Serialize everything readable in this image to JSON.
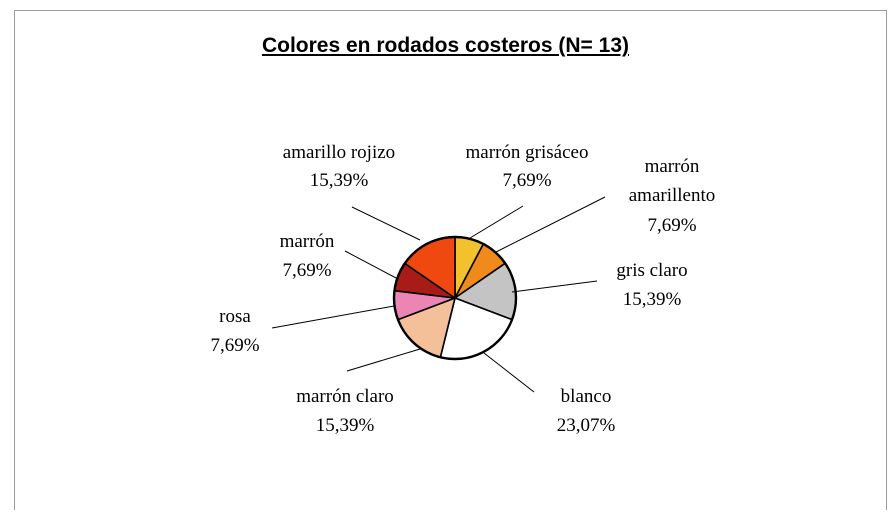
{
  "chart_data": {
    "type": "pie",
    "title": "Colores en rodados costeros (N= 13)",
    "slices": [
      {
        "label": "marrón grisáceo",
        "value": 7.69,
        "value_text": "7,69%",
        "color": "#f2c12e"
      },
      {
        "label": "marrón amarillento",
        "value": 7.69,
        "value_text": "7,69%",
        "color": "#f08a1c"
      },
      {
        "label": "gris claro",
        "value": 15.39,
        "value_text": "15,39%",
        "color": "#c4c4c4"
      },
      {
        "label": "blanco",
        "value": 23.07,
        "value_text": "23,07%",
        "color": "#ffffff"
      },
      {
        "label": "marrón claro",
        "value": 15.39,
        "value_text": "15,39%",
        "color": "#f3c09a"
      },
      {
        "label": "rosa",
        "value": 7.69,
        "value_text": "7,69%",
        "color": "#ec84b4"
      },
      {
        "label": "marrón",
        "value": 7.69,
        "value_text": "7,69%",
        "color": "#a81c18"
      },
      {
        "label": "amarillo rojizo",
        "value": 15.39,
        "value_text": "15,39%",
        "color": "#f0490f"
      }
    ]
  }
}
